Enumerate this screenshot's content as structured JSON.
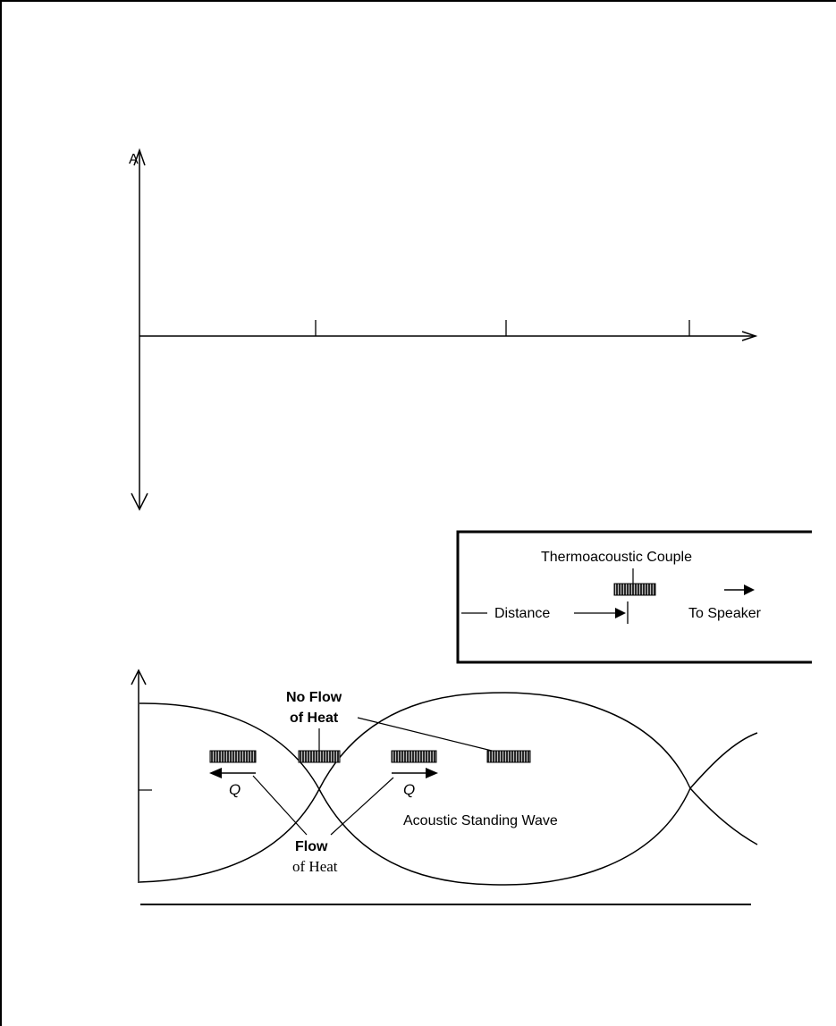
{
  "upper_axes": {
    "y_axis_label": "A"
  },
  "inset": {
    "couple_label": "Thermoacoustic Couple",
    "speaker_label": "To Speaker",
    "distance_label": "Distance"
  },
  "lower_diagram": {
    "no_flow_line1": "No Flow",
    "no_flow_line2": "of Heat",
    "flow_line1": "Flow",
    "flow_line2": "of Heat",
    "wave_label": "Acoustic Standing Wave",
    "q_left": "Q",
    "q_right": "Q"
  }
}
